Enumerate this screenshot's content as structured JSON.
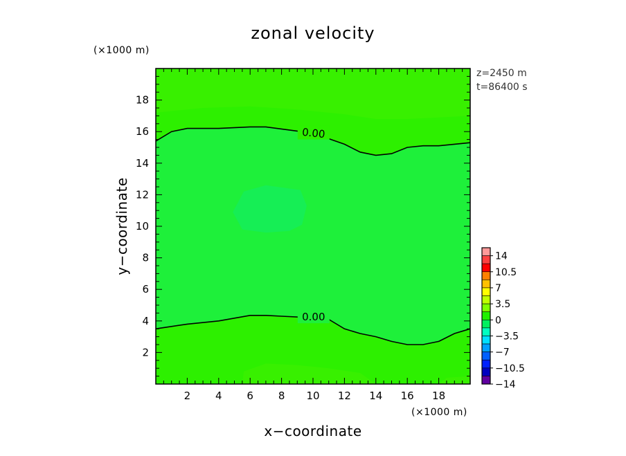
{
  "chart_data": {
    "type": "heatmap",
    "title": "zonal velocity",
    "xlabel": "x−coordinate",
    "ylabel": "y−coordinate",
    "x_unit": "(×1000 m)",
    "y_unit": "(×1000 m)",
    "xlim": [
      0,
      20
    ],
    "ylim": [
      0,
      20
    ],
    "x_ticks": [
      2,
      4,
      6,
      8,
      10,
      12,
      14,
      16,
      18
    ],
    "y_ticks": [
      2,
      4,
      6,
      8,
      10,
      12,
      14,
      16,
      18
    ],
    "info": [
      "z=2450 m",
      "t=86400 s"
    ],
    "contour_lines": [
      {
        "label": "0.00",
        "points": [
          [
            0,
            15.4
          ],
          [
            1,
            16.0
          ],
          [
            2,
            16.2
          ],
          [
            4,
            16.2
          ],
          [
            6,
            16.3
          ],
          [
            7,
            16.3
          ],
          [
            8.5,
            16.1
          ],
          [
            10,
            15.9
          ],
          [
            12,
            15.2
          ],
          [
            13,
            14.7
          ],
          [
            14,
            14.5
          ],
          [
            15,
            14.6
          ],
          [
            16,
            15.0
          ],
          [
            17,
            15.1
          ],
          [
            18,
            15.1
          ],
          [
            19,
            15.2
          ],
          [
            20,
            15.3
          ]
        ]
      },
      {
        "label": "0.00",
        "points": [
          [
            0,
            3.5
          ],
          [
            2,
            3.8
          ],
          [
            4,
            4.0
          ],
          [
            6,
            4.35
          ],
          [
            7,
            4.35
          ],
          [
            8,
            4.3
          ],
          [
            10,
            4.2
          ],
          [
            11,
            4.1
          ],
          [
            12,
            3.5
          ],
          [
            13,
            3.2
          ],
          [
            14,
            3.0
          ],
          [
            15,
            2.7
          ],
          [
            16,
            2.5
          ],
          [
            17,
            2.5
          ],
          [
            18,
            2.7
          ],
          [
            19,
            3.2
          ],
          [
            20,
            3.5
          ]
        ]
      }
    ],
    "colorbar": {
      "labels": [
        "14",
        "10.5",
        "7",
        "3.5",
        "0",
        "−3.5",
        "−7",
        "−10.5",
        "−14"
      ],
      "colors": [
        "#ff9999",
        "#ff4040",
        "#ff0000",
        "#ff8000",
        "#ffc000",
        "#ffff00",
        "#c0ff00",
        "#80ff00",
        "#20f000",
        "#00f060",
        "#00ffc0",
        "#00e0ff",
        "#00a0ff",
        "#0060ff",
        "#0020ff",
        "#0000c0",
        "#6000a0"
      ]
    },
    "field_colors": {
      "base": "#2df000",
      "slightly_negative": "#1ef03a",
      "more_negative": "#16ee55",
      "slightly_positive": "#42f000"
    }
  }
}
